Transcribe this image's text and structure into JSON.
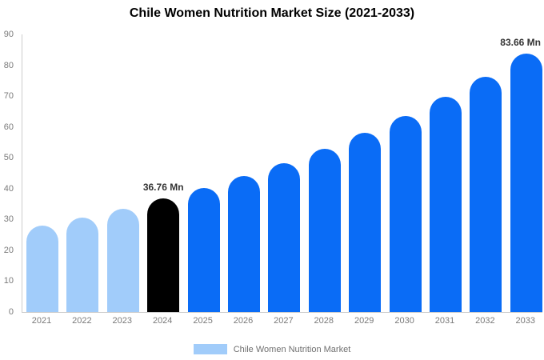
{
  "chart_data": {
    "type": "bar",
    "title": "Chile Women Nutrition Market Size (2021-2033)",
    "unit": "Mn",
    "xlabel": "",
    "ylabel": "",
    "ylim": [
      0,
      90
    ],
    "yticks": [
      0,
      10,
      20,
      30,
      40,
      50,
      60,
      70,
      80,
      90
    ],
    "grid": false,
    "categories": [
      "2021",
      "2022",
      "2023",
      "2024",
      "2025",
      "2026",
      "2027",
      "2028",
      "2029",
      "2030",
      "2031",
      "2032",
      "2033"
    ],
    "values": [
      27.95,
      30.62,
      33.55,
      36.76,
      40.28,
      44.13,
      48.35,
      52.98,
      58.05,
      63.6,
      69.69,
      76.36,
      83.66
    ],
    "bar_colors": [
      "#a1ccfa",
      "#a1ccfa",
      "#a1ccfa",
      "#000000",
      "#0a6cf6",
      "#0a6cf6",
      "#0a6cf6",
      "#0a6cf6",
      "#0a6cf6",
      "#0a6cf6",
      "#0a6cf6",
      "#0a6cf6",
      "#0a6cf6"
    ],
    "annotations": [
      {
        "category": "2024",
        "text": "36.76 Mn"
      },
      {
        "category": "2033",
        "text": "83.66 Mn"
      }
    ],
    "legend": {
      "position": "bottom",
      "label": "Chile Women Nutrition Market",
      "swatch_color": "#a1ccfa"
    },
    "colors": {
      "historical": "#a1ccfa",
      "base_year": "#000000",
      "forecast": "#0a6cf6",
      "axis_line": "#cccccc",
      "tick_text": "#7a7a7a",
      "annotation_text": "#333333"
    }
  }
}
